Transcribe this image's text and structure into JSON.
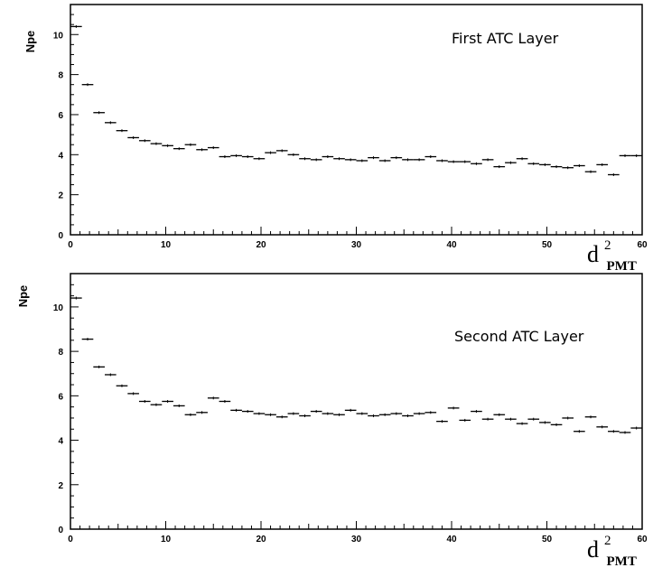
{
  "chart_data": [
    {
      "type": "scatter",
      "title": "First ATC Layer",
      "xlabel": {
        "base": "d",
        "sup": "2",
        "sub": "PMT"
      },
      "ylabel": "Npe",
      "xlim": [
        0,
        60
      ],
      "ylim": [
        0,
        11.5
      ],
      "xticks": [
        0,
        10,
        20,
        30,
        40,
        50,
        60
      ],
      "yticks": [
        0,
        2,
        4,
        6,
        8,
        10
      ],
      "bin_width": 1.2,
      "series": [
        {
          "x": [
            0.6,
            1.8,
            3.0,
            4.2,
            5.4,
            6.6,
            7.8,
            9.0,
            10.2,
            11.4,
            12.6,
            13.8,
            15.0,
            16.2,
            17.4,
            18.6,
            19.8,
            21.0,
            22.2,
            23.4,
            24.6,
            25.8,
            27.0,
            28.2,
            29.4,
            30.6,
            31.8,
            33.0,
            34.2,
            35.4,
            36.6,
            37.8,
            39.0,
            40.2,
            41.4,
            42.6,
            43.8,
            45.0,
            46.2,
            47.4,
            48.6,
            49.8,
            51.0,
            52.2,
            53.4,
            54.6,
            55.8,
            57.0,
            58.2,
            59.4
          ],
          "y": [
            10.4,
            7.5,
            6.1,
            5.6,
            5.2,
            4.85,
            4.7,
            4.55,
            4.45,
            4.3,
            4.5,
            4.25,
            4.35,
            3.9,
            3.95,
            3.9,
            3.8,
            4.1,
            4.2,
            4.0,
            3.8,
            3.75,
            3.9,
            3.8,
            3.75,
            3.7,
            3.85,
            3.7,
            3.85,
            3.75,
            3.75,
            3.9,
            3.7,
            3.65,
            3.65,
            3.55,
            3.75,
            3.4,
            3.6,
            3.8,
            3.55,
            3.5,
            3.4,
            3.35,
            3.45,
            3.15,
            3.5,
            3.0,
            3.95,
            3.95
          ]
        }
      ]
    },
    {
      "type": "scatter",
      "title": "Second ATC Layer",
      "xlabel": {
        "base": "d",
        "sup": "2",
        "sub": "PMT"
      },
      "ylabel": "Npe",
      "xlim": [
        0,
        60
      ],
      "ylim": [
        0,
        11.5
      ],
      "xticks": [
        0,
        10,
        20,
        30,
        40,
        50,
        60
      ],
      "yticks": [
        0,
        2,
        4,
        6,
        8,
        10
      ],
      "bin_width": 1.2,
      "series": [
        {
          "x": [
            0.6,
            1.8,
            3.0,
            4.2,
            5.4,
            6.6,
            7.8,
            9.0,
            10.2,
            11.4,
            12.6,
            13.8,
            15.0,
            16.2,
            17.4,
            18.6,
            19.8,
            21.0,
            22.2,
            23.4,
            24.6,
            25.8,
            27.0,
            28.2,
            29.4,
            30.6,
            31.8,
            33.0,
            34.2,
            35.4,
            36.6,
            37.8,
            39.0,
            40.2,
            41.4,
            42.6,
            43.8,
            45.0,
            46.2,
            47.4,
            48.6,
            49.8,
            51.0,
            52.2,
            53.4,
            54.6,
            55.8,
            57.0,
            58.2,
            59.4
          ],
          "y": [
            10.4,
            8.55,
            7.3,
            6.95,
            6.45,
            6.1,
            5.75,
            5.6,
            5.75,
            5.55,
            5.15,
            5.25,
            5.9,
            5.75,
            5.35,
            5.3,
            5.2,
            5.15,
            5.05,
            5.2,
            5.1,
            5.3,
            5.2,
            5.15,
            5.35,
            5.2,
            5.1,
            5.15,
            5.2,
            5.1,
            5.2,
            5.25,
            4.85,
            5.45,
            4.9,
            5.3,
            4.95,
            5.15,
            4.95,
            4.75,
            4.95,
            4.8,
            4.7,
            5.0,
            4.4,
            5.05,
            4.6,
            4.4,
            4.35,
            4.55
          ]
        }
      ]
    }
  ]
}
